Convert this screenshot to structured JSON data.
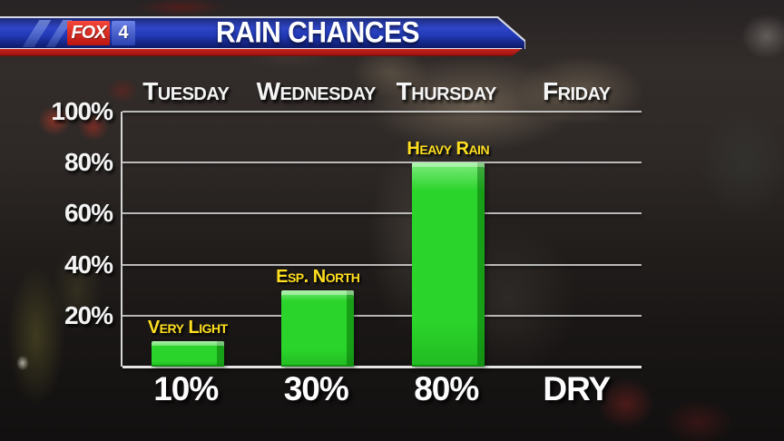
{
  "header": {
    "logo": {
      "fox": "FOX",
      "channel": "4"
    },
    "title": "RAIN CHANCES"
  },
  "chart_data": {
    "type": "bar",
    "title": "RAIN CHANCES",
    "categories": [
      "Tuesday",
      "Wednesday",
      "Thursday",
      "Friday"
    ],
    "series": [
      {
        "name": "Rain chance (%)",
        "values": [
          10,
          30,
          80,
          0
        ]
      }
    ],
    "value_labels": [
      "10%",
      "30%",
      "80%",
      "DRY"
    ],
    "bar_annotations": [
      "Very Light",
      "Esp. North",
      "Heavy Rain",
      null
    ],
    "y_axis": {
      "min": 0,
      "max": 100,
      "ticks": [
        100,
        80,
        60,
        40,
        20
      ],
      "tick_labels": [
        "100%",
        "80%",
        "60%",
        "40%",
        "20%"
      ]
    },
    "grid": true,
    "legend": false,
    "bar_color": "#2bd42b",
    "bar_gradient_top": "#7deb7d",
    "annotation_color": "#ffdf1f",
    "axis_text_color": "#f4f4f4",
    "banner_blue": "#2038b4",
    "banner_red": "#b01b1b"
  }
}
